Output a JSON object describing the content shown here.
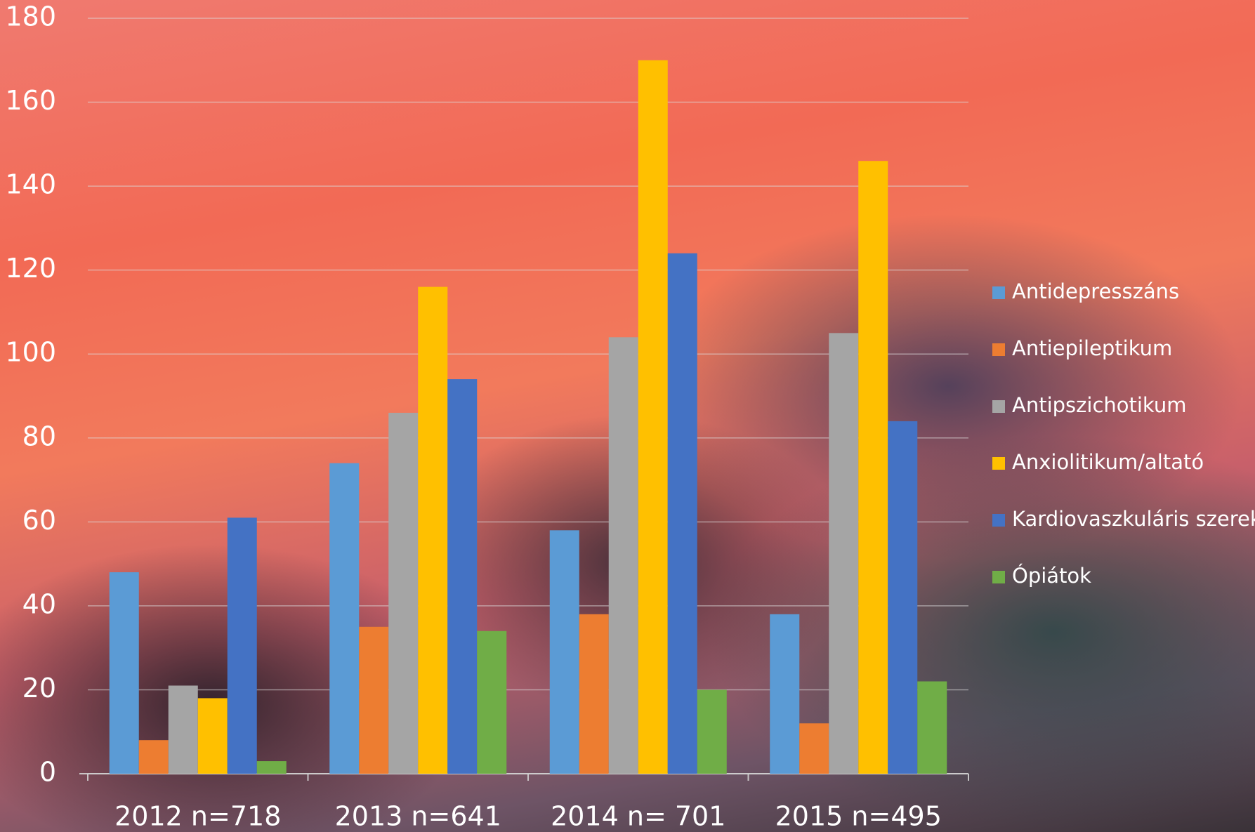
{
  "chart_data": {
    "type": "bar",
    "categories": [
      "2012 n=718",
      "2013 n=641",
      "2014 n= 701",
      "2015 n=495"
    ],
    "series": [
      {
        "name": "Antidepresszáns",
        "color": "#5b9bd5",
        "values": [
          48,
          74,
          58,
          38
        ]
      },
      {
        "name": "Antiepileptikum",
        "color": "#ed7d31",
        "values": [
          8,
          35,
          38,
          12
        ]
      },
      {
        "name": "Antipszichotikum",
        "color": "#a5a5a5",
        "values": [
          21,
          86,
          104,
          105
        ]
      },
      {
        "name": "Anxiolitikum/altató",
        "color": "#ffc000",
        "values": [
          18,
          116,
          170,
          146
        ]
      },
      {
        "name": "Kardiovaszkuláris szerek",
        "color": "#4472c4",
        "values": [
          61,
          94,
          124,
          84
        ]
      },
      {
        "name": "Ópiátok",
        "color": "#70ad47",
        "values": [
          3,
          34,
          20,
          22
        ]
      }
    ],
    "ylim": [
      0,
      180
    ],
    "yticks": [
      0,
      20,
      40,
      60,
      80,
      100,
      120,
      140,
      160,
      180
    ],
    "grid": true,
    "legend": "right"
  }
}
